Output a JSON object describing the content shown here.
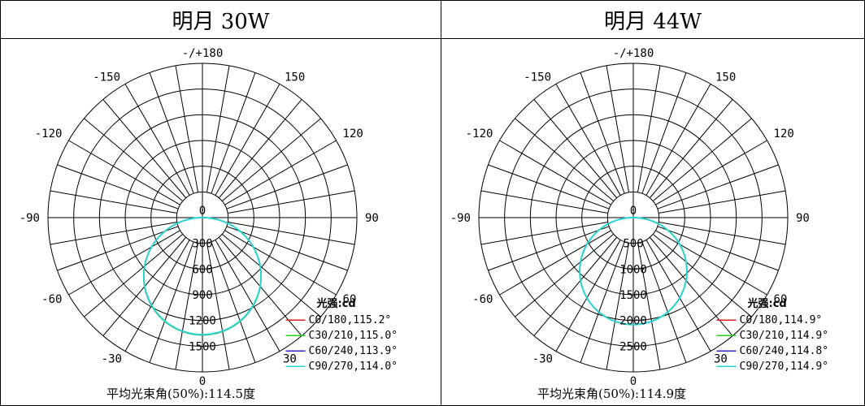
{
  "chart_data": [
    {
      "type": "polar",
      "title": "明月 30W",
      "angle_labels": {
        "top": "-/+180",
        "p150": "150",
        "m150": "-150",
        "p120": "120",
        "m120": "-120",
        "p90": "90",
        "m90": "-90",
        "p60": "60",
        "m60": "-60",
        "p30": "30",
        "m30": "-30",
        "bottom": "0"
      },
      "center_label": "0",
      "ring_labels": [
        "300",
        "600",
        "900",
        "1200",
        "1500"
      ],
      "r_max": 1500,
      "legend_title": "光强:cd",
      "series": [
        {
          "name": "C0/180,115.2°",
          "color": "#e01b1b",
          "peak": 1370,
          "beam": 115.2
        },
        {
          "name": "C30/210,115.0°",
          "color": "#1fd41f",
          "peak": 1370,
          "beam": 115.0
        },
        {
          "name": "C60/240,113.9°",
          "color": "#2a2ad6",
          "peak": 1365,
          "beam": 113.9
        },
        {
          "name": "C90/270,114.0°",
          "color": "#2bd4d4",
          "peak": 1365,
          "beam": 114.0
        }
      ],
      "beam_angle_text": "平均光束角(50%):114.5度"
    },
    {
      "type": "polar",
      "title": "明月 44W",
      "angle_labels": {
        "top": "-/+180",
        "p150": "150",
        "m150": "-150",
        "p120": "120",
        "m120": "-120",
        "p90": "90",
        "m90": "-90",
        "p60": "60",
        "m60": "-60",
        "p30": "30",
        "m30": "-30",
        "bottom": "0"
      },
      "center_label": "0",
      "ring_labels": [
        "500",
        "1000",
        "1500",
        "2000",
        "2500"
      ],
      "r_max": 2500,
      "legend_title": "光强:cd",
      "series": [
        {
          "name": "C0/180,114.9°",
          "color": "#e01b1b",
          "peak": 2080,
          "beam": 114.9
        },
        {
          "name": "C30/210,114.9°",
          "color": "#1fd41f",
          "peak": 2080,
          "beam": 114.9
        },
        {
          "name": "C60/240,114.8°",
          "color": "#2a2ad6",
          "peak": 2080,
          "beam": 114.8
        },
        {
          "name": "C90/270,114.9°",
          "color": "#2bd4d4",
          "peak": 2080,
          "beam": 114.9
        }
      ],
      "beam_angle_text": "平均光束角(50%):114.9度"
    }
  ]
}
